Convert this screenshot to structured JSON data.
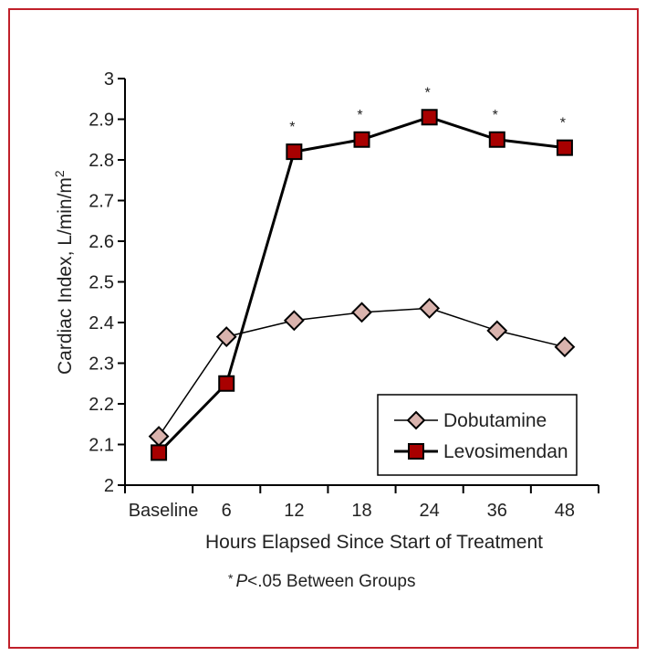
{
  "chart_data": {
    "type": "line",
    "title": "",
    "xlabel": "Hours Elapsed Since Start of Treatment",
    "ylabel": "Cardiac Index, L/min/m",
    "ylabel_sup": "2",
    "categories": [
      "Baseline",
      "6",
      "12",
      "18",
      "24",
      "36",
      "48"
    ],
    "ylim": [
      2,
      3
    ],
    "yticks": [
      "2",
      "2.1",
      "2.2",
      "2.3",
      "2.4",
      "2.5",
      "2.6",
      "2.7",
      "2.8",
      "2.9",
      "3"
    ],
    "grid": false,
    "legend_position": "bottom-right",
    "series": [
      {
        "name": "Dobutamine",
        "marker": "diamond",
        "color": "#d9b3ad",
        "values": [
          2.12,
          2.365,
          2.405,
          2.425,
          2.435,
          2.38,
          2.34
        ]
      },
      {
        "name": "Levosimendan",
        "marker": "square",
        "color": "#a80000",
        "values": [
          2.08,
          2.25,
          2.82,
          2.85,
          2.905,
          2.85,
          2.83
        ]
      }
    ],
    "significance_marks": [
      "",
      "",
      "*",
      "*",
      "*",
      "*",
      "*"
    ],
    "footnote_star": "*",
    "footnote_p": "P",
    "footnote_rest": "<.05 Between Groups"
  },
  "frame_color": "#c0202a"
}
